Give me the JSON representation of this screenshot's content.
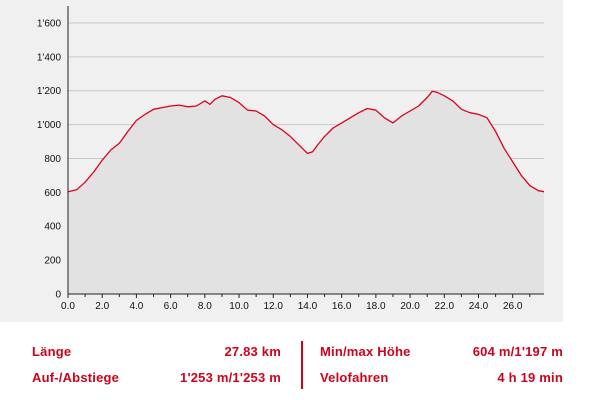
{
  "colors": {
    "line": "#e0001b",
    "fill": "#e2e2e2",
    "grid": "#c8c8c8",
    "panel": "#f0f0f0",
    "accent": "#d0021b"
  },
  "chart_data": {
    "type": "area",
    "title": "",
    "xlabel": "",
    "ylabel": "",
    "xlim": [
      0,
      27.83
    ],
    "ylim": [
      0,
      1700
    ],
    "grid": "horizontal",
    "x_ticks": [
      "0.0",
      "2.0",
      "4.0",
      "6.0",
      "8.0",
      "10.0",
      "12.0",
      "14.0",
      "16.0",
      "18.0",
      "20.0",
      "22.0",
      "24.0",
      "26.0"
    ],
    "y_ticks": [
      "0",
      "200",
      "400",
      "600",
      "800",
      "1'000",
      "1'200",
      "1'400",
      "1'600"
    ],
    "x": [
      0,
      0.5,
      1.0,
      1.5,
      2.0,
      2.5,
      3.0,
      3.5,
      4.0,
      4.5,
      5.0,
      5.5,
      6.0,
      6.5,
      7.0,
      7.5,
      8.0,
      8.3,
      8.6,
      9.0,
      9.5,
      10.0,
      10.5,
      11.0,
      11.5,
      12.0,
      12.5,
      13.0,
      13.5,
      14.0,
      14.3,
      14.6,
      15.0,
      15.5,
      16.0,
      16.5,
      17.0,
      17.5,
      18.0,
      18.5,
      19.0,
      19.5,
      20.0,
      20.5,
      21.0,
      21.3,
      21.6,
      22.0,
      22.5,
      23.0,
      23.5,
      24.0,
      24.5,
      25.0,
      25.5,
      26.0,
      26.5,
      27.0,
      27.5,
      27.83
    ],
    "y": [
      604,
      615,
      660,
      720,
      790,
      850,
      890,
      960,
      1025,
      1060,
      1090,
      1100,
      1110,
      1115,
      1105,
      1110,
      1140,
      1120,
      1150,
      1170,
      1160,
      1130,
      1085,
      1080,
      1050,
      1000,
      970,
      930,
      880,
      830,
      840,
      880,
      930,
      980,
      1010,
      1040,
      1070,
      1095,
      1085,
      1040,
      1010,
      1050,
      1080,
      1110,
      1160,
      1197,
      1190,
      1170,
      1140,
      1090,
      1070,
      1060,
      1040,
      960,
      860,
      780,
      700,
      640,
      610,
      604
    ]
  },
  "stats": {
    "length_label": "Länge",
    "length_value": "27.83 km",
    "ascent_label": "Auf-/Abstiege",
    "ascent_value": "1'253 m/1'253 m",
    "minmax_label": "Min/max Höhe",
    "minmax_value": "604 m/1'197 m",
    "mode_label": "Velofahren",
    "mode_value": "4 h 19 min"
  }
}
